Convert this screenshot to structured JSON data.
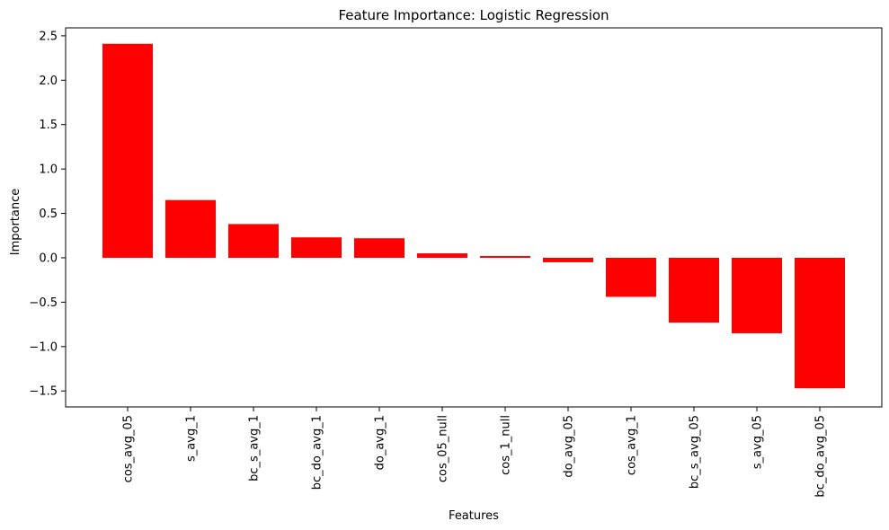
{
  "chart_data": {
    "type": "bar",
    "title": "Feature Importance: Logistic Regression",
    "xlabel": "Features",
    "ylabel": "Importance",
    "categories": [
      "cos_avg_05",
      "s_avg_1",
      "bc_s_avg_1",
      "bc_do_avg_1",
      "do_avg_1",
      "cos_05_null",
      "cos_1_null",
      "do_avg_05",
      "cos_avg_1",
      "bc_s_avg_05",
      "s_avg_05",
      "bc_do_avg_05"
    ],
    "values": [
      2.41,
      0.65,
      0.38,
      0.23,
      0.22,
      0.05,
      0.02,
      -0.05,
      -0.44,
      -0.73,
      -0.85,
      -1.47
    ],
    "ylim": [
      -1.68,
      2.59
    ],
    "yticks": [
      -1.5,
      -1.0,
      -0.5,
      0.0,
      0.5,
      1.0,
      1.5,
      2.0,
      2.5
    ],
    "ytick_labels": [
      "−1.5",
      "−1.0",
      "−0.5",
      "0.0",
      "0.5",
      "1.0",
      "1.5",
      "2.0",
      "2.5"
    ],
    "bar_color": "#ff0000",
    "grid": false,
    "legend": "none",
    "xtick_rotation": "vertical"
  }
}
